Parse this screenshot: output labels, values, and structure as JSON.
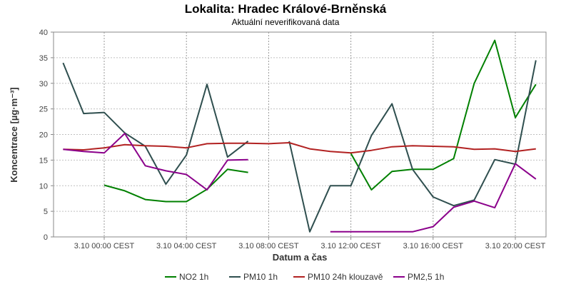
{
  "chart_data": {
    "type": "line",
    "title": "Lokalita: Hradec Králové-Brněnská",
    "subtitle": "Aktuální neverifikovaná data",
    "xlabel": "Datum a čas",
    "ylabel": "Koncentrace [µg·m⁻³]",
    "ylim": [
      0,
      40
    ],
    "yticks": [
      0,
      5,
      10,
      15,
      20,
      25,
      30,
      35,
      40
    ],
    "x_hours": [
      -2,
      -1,
      0,
      1,
      2,
      3,
      4,
      5,
      6,
      7,
      8,
      9,
      10,
      11,
      12,
      13,
      14,
      15,
      16,
      17,
      18,
      19,
      20,
      21
    ],
    "xlim_hours": [
      -4.5,
      21.5
    ],
    "xticks": [
      {
        "hour": 0,
        "label": "3.10 00:00 CEST"
      },
      {
        "hour": 4,
        "label": "3.10 04:00 CEST"
      },
      {
        "hour": 8,
        "label": "3.10 08:00 CEST"
      },
      {
        "hour": 12,
        "label": "3.10 12:00 CEST"
      },
      {
        "hour": 16,
        "label": "3.10 16:00 CEST"
      },
      {
        "hour": 20,
        "label": "3.10 20:00 CEST"
      }
    ],
    "grid": true,
    "legend_position": "bottom",
    "series": [
      {
        "name": "NO2 1h",
        "color": "#008000",
        "values": [
          null,
          null,
          10.1,
          9.0,
          7.3,
          6.9,
          6.9,
          9.3,
          13.2,
          12.6,
          null,
          null,
          null,
          null,
          16.3,
          9.2,
          12.8,
          13.2,
          13.2,
          15.3,
          30.0,
          38.4,
          23.3,
          29.8
        ]
      },
      {
        "name": "PM10 1h",
        "color": "#2f4f4f",
        "values": [
          34.0,
          24.1,
          24.3,
          20.3,
          17.7,
          10.3,
          16.0,
          29.8,
          15.6,
          18.7,
          null,
          18.7,
          1.0,
          10.0,
          10.0,
          19.8,
          26.0,
          13.2,
          7.8,
          6.1,
          7.2,
          15.1,
          14.2,
          34.5
        ]
      },
      {
        "name": "PM10 24h klouzavě",
        "color": "#b22222",
        "values": [
          17.1,
          17.0,
          17.4,
          18.0,
          17.8,
          17.7,
          17.4,
          18.2,
          18.3,
          18.3,
          18.2,
          18.4,
          17.2,
          16.7,
          16.4,
          16.9,
          17.6,
          17.8,
          17.7,
          17.6,
          17.1,
          17.2,
          16.7,
          17.2
        ]
      },
      {
        "name": "PM2,5 1h",
        "color": "#8b008b",
        "values": [
          17.1,
          16.7,
          16.4,
          20.2,
          13.9,
          12.9,
          12.2,
          9.2,
          15.0,
          15.1,
          null,
          null,
          null,
          1.0,
          1.0,
          1.0,
          1.0,
          1.0,
          2.0,
          5.8,
          7.0,
          5.7,
          14.3,
          11.3
        ]
      }
    ]
  }
}
